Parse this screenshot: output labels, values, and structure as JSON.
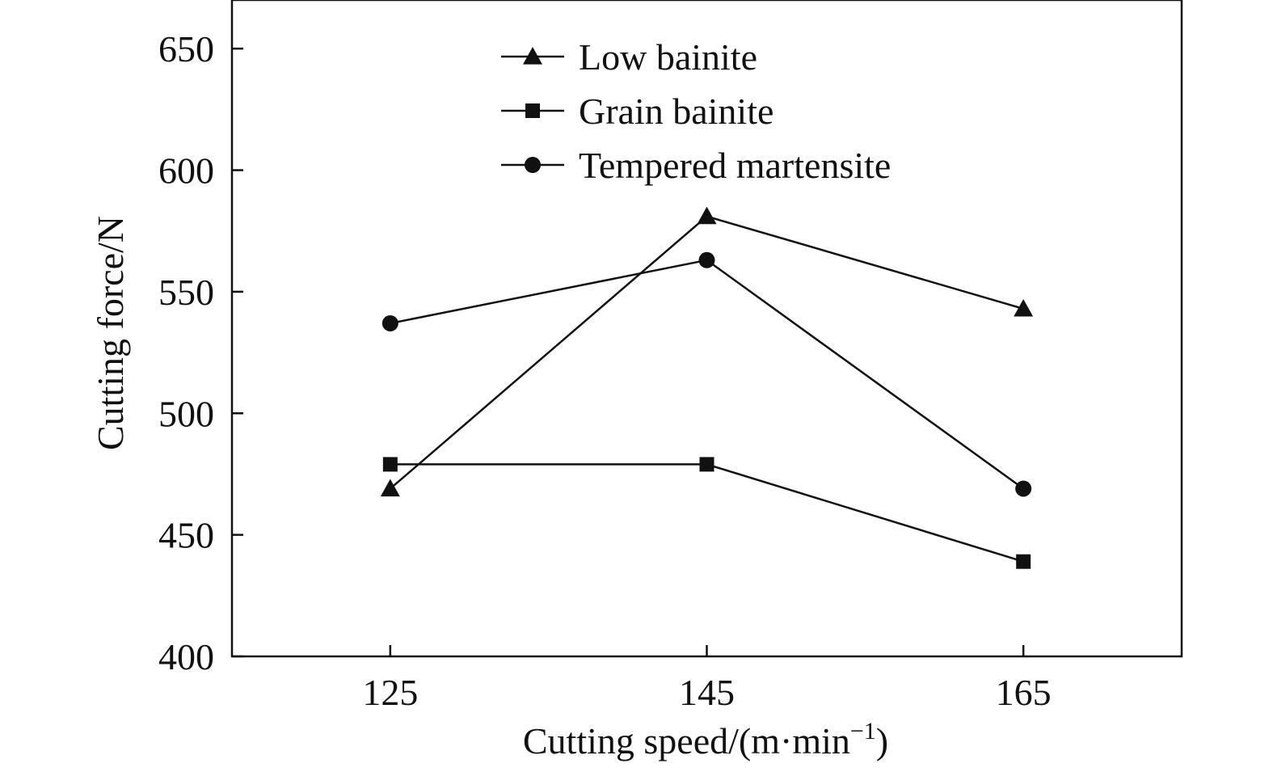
{
  "chart_data": {
    "type": "line",
    "title": "",
    "xlabel": "Cutting speed/(m·min",
    "xlabel_sup": "−1",
    "xlabel_close": ")",
    "ylabel": "Cutting force/N",
    "categories": [
      "125",
      "145",
      "165"
    ],
    "x": [
      125,
      145,
      165
    ],
    "xlim": [
      115,
      175
    ],
    "ylim": [
      400,
      670
    ],
    "yticks": [
      400,
      450,
      500,
      550,
      600,
      650
    ],
    "grid": false,
    "legend_position": "top-center",
    "series": [
      {
        "name": "Low bainite",
        "marker": "triangle",
        "values": [
          469,
          581,
          543
        ]
      },
      {
        "name": "Grain bainite",
        "marker": "square",
        "values": [
          479,
          479,
          439
        ]
      },
      {
        "name": "Tempered martensite",
        "marker": "circle",
        "values": [
          537,
          563,
          469
        ]
      }
    ],
    "color": "#111111"
  }
}
